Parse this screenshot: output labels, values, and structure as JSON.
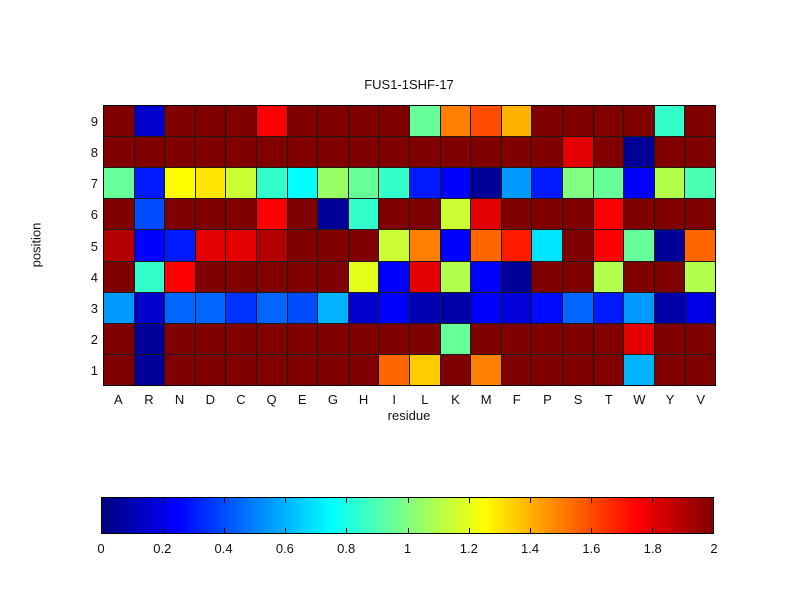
{
  "chart_data": {
    "type": "heatmap",
    "title": "FUS1-1SHF-17",
    "xlabel": "residue",
    "ylabel": "position",
    "x_categories": [
      "A",
      "R",
      "N",
      "D",
      "C",
      "Q",
      "E",
      "G",
      "H",
      "I",
      "L",
      "K",
      "M",
      "F",
      "P",
      "S",
      "T",
      "W",
      "Y",
      "V"
    ],
    "y_categories": [
      "9",
      "8",
      "7",
      "6",
      "5",
      "4",
      "3",
      "2",
      "1"
    ],
    "colormap": "jet",
    "vmin": 0,
    "vmax": 2,
    "grid_lines": true,
    "colorbar": {
      "orientation": "horizontal",
      "position": "bottom",
      "tick_values": [
        0,
        0.2,
        0.4,
        0.6,
        0.8,
        1,
        1.2,
        1.4,
        1.6,
        1.8,
        2
      ],
      "tick_labels": [
        "0",
        "0.2",
        "0.4",
        "0.6",
        "0.8",
        "1",
        "1.2",
        "1.4",
        "1.6",
        "1.8",
        "2"
      ]
    },
    "values": [
      [
        2,
        0.15,
        2,
        2,
        2,
        1.75,
        2,
        2,
        2,
        2,
        0.95,
        1.5,
        1.6,
        1.4,
        2,
        2,
        2,
        2,
        0.85,
        2
      ],
      [
        2,
        2,
        2,
        2,
        2,
        2,
        2,
        2,
        2,
        2,
        2,
        2,
        2,
        2,
        2,
        1.8,
        2,
        0.05,
        2,
        2
      ],
      [
        0.95,
        0.3,
        1.25,
        1.3,
        1.15,
        0.85,
        0.75,
        1.05,
        0.95,
        0.85,
        0.3,
        0.25,
        0.05,
        0.55,
        0.3,
        1.0,
        0.95,
        0.25,
        1.1,
        0.9
      ],
      [
        2,
        0.4,
        2,
        2,
        2,
        1.75,
        2,
        0.05,
        0.85,
        2,
        2,
        1.15,
        1.8,
        2,
        2,
        2,
        1.75,
        2,
        2,
        2
      ],
      [
        1.9,
        0.25,
        0.3,
        1.8,
        1.8,
        1.9,
        2,
        2,
        2,
        1.15,
        1.5,
        0.25,
        1.55,
        1.7,
        0.7,
        2,
        1.75,
        0.95,
        0.05,
        1.55
      ],
      [
        2,
        0.85,
        1.75,
        2,
        2,
        2,
        2,
        2,
        1.2,
        0.25,
        1.8,
        1.1,
        0.25,
        0.05,
        2,
        2,
        1.1,
        2,
        2,
        1.1
      ],
      [
        0.55,
        0.15,
        0.45,
        0.45,
        0.35,
        0.45,
        0.4,
        0.6,
        0.15,
        0.25,
        0.1,
        0.08,
        0.25,
        0.18,
        0.27,
        0.45,
        0.3,
        0.55,
        0.08,
        0.2
      ],
      [
        2,
        0.05,
        2,
        2,
        2,
        2,
        2,
        2,
        2,
        2,
        2,
        0.95,
        2,
        2,
        2,
        2,
        2,
        1.8,
        2,
        2
      ],
      [
        2,
        0.05,
        2,
        2,
        2,
        2,
        2,
        2,
        2,
        1.55,
        1.35,
        2,
        1.5,
        2,
        2,
        2,
        2,
        0.6,
        2,
        2
      ]
    ]
  }
}
